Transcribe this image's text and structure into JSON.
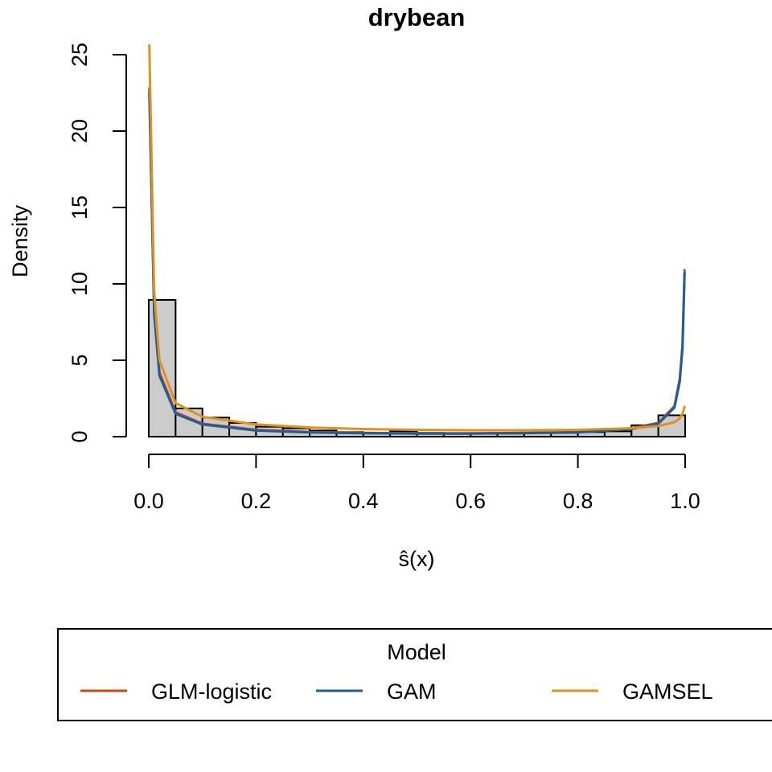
{
  "chart_data": {
    "type": "histogram",
    "title": "drybean",
    "xlabel": "ŝ(x)",
    "ylabel": "Density",
    "xlim": [
      0,
      1
    ],
    "ylim": [
      0,
      25
    ],
    "xticks": [
      "0.0",
      "0.2",
      "0.4",
      "0.6",
      "0.8",
      "1.0"
    ],
    "yticks": [
      "0",
      "5",
      "10",
      "15",
      "20",
      "25"
    ],
    "bins": {
      "breaks": [
        0,
        0.05,
        0.1,
        0.15,
        0.2,
        0.25,
        0.3,
        0.35,
        0.4,
        0.45,
        0.5,
        0.55,
        0.6,
        0.65,
        0.7,
        0.75,
        0.8,
        0.85,
        0.9,
        0.95,
        1.0
      ],
      "density": [
        8.95,
        1.85,
        1.25,
        0.9,
        0.65,
        0.55,
        0.4,
        0.3,
        0.25,
        0.35,
        0.25,
        0.2,
        0.2,
        0.2,
        0.25,
        0.25,
        0.3,
        0.35,
        0.75,
        1.4
      ]
    },
    "legend": {
      "title": "Model",
      "position": "bottom"
    },
    "series": [
      {
        "name": "GLM-logistic",
        "color": "#c8461a",
        "x": [
          0.001,
          0.01,
          0.02,
          0.05,
          0.1,
          0.2,
          0.3,
          0.4,
          0.5,
          0.6,
          0.7,
          0.8,
          0.9,
          0.95,
          0.98,
          0.99,
          0.995,
          0.999
        ],
        "y": [
          22.8,
          8.3,
          4.2,
          1.6,
          0.85,
          0.45,
          0.3,
          0.25,
          0.22,
          0.22,
          0.25,
          0.3,
          0.55,
          0.9,
          2.0,
          3.8,
          6.0,
          10.9
        ]
      },
      {
        "name": "GAM",
        "color": "#1f5d99",
        "x": [
          0.001,
          0.01,
          0.02,
          0.05,
          0.1,
          0.2,
          0.3,
          0.4,
          0.5,
          0.6,
          0.7,
          0.8,
          0.9,
          0.95,
          0.98,
          0.99,
          0.995,
          0.999
        ],
        "y": [
          22.5,
          8.0,
          4.0,
          1.5,
          0.8,
          0.4,
          0.28,
          0.22,
          0.2,
          0.2,
          0.23,
          0.28,
          0.5,
          0.85,
          1.9,
          3.6,
          5.8,
          10.7
        ]
      },
      {
        "name": "GAMSEL",
        "color": "#e0921a",
        "x": [
          0.001,
          0.01,
          0.02,
          0.05,
          0.1,
          0.2,
          0.3,
          0.4,
          0.5,
          0.6,
          0.7,
          0.8,
          0.9,
          0.95,
          0.98,
          0.99,
          0.995,
          0.999
        ],
        "y": [
          25.6,
          9.5,
          5.0,
          2.2,
          1.3,
          0.8,
          0.6,
          0.5,
          0.45,
          0.42,
          0.42,
          0.45,
          0.55,
          0.7,
          0.95,
          1.2,
          1.5,
          1.95
        ]
      }
    ]
  }
}
